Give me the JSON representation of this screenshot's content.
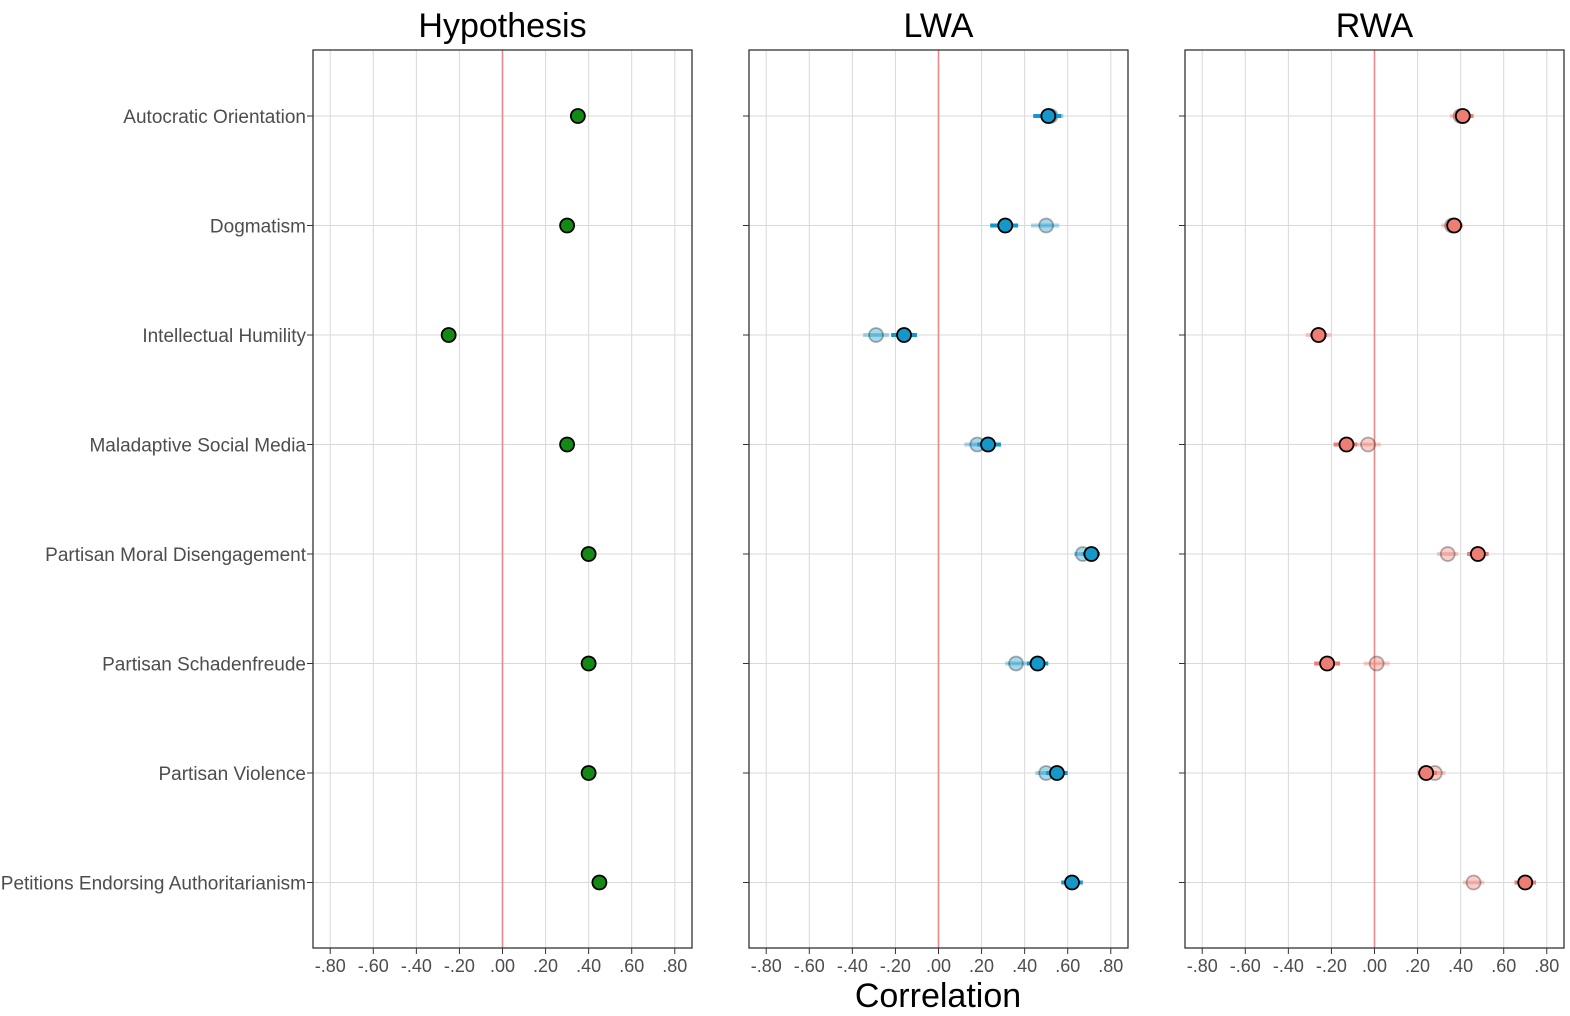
{
  "chart_data": {
    "type": "scatter",
    "xlabel": "Correlation",
    "xlim": [
      -0.88,
      0.88
    ],
    "x_ticks": [
      -0.8,
      -0.6,
      -0.4,
      -0.2,
      0.0,
      0.2,
      0.4,
      0.6,
      0.8
    ],
    "x_tick_labels": [
      "-.80",
      "-.60",
      "-.40",
      "-.20",
      ".00",
      ".20",
      ".40",
      ".60",
      ".80"
    ],
    "reference_line": 0,
    "categories": [
      "Autocratic Orientation",
      "Dogmatism",
      "Intellectual Humility",
      "Maladaptive Social Media",
      "Partisan Moral Disengagement",
      "Partisan Schadenfreude",
      "Partisan Violence",
      "Petitions Endorsing Authoritarianism"
    ],
    "grid": true,
    "colors": {
      "hypothesis": "#138a13",
      "lwa": "#1497c9",
      "rwa": "#ee7e74",
      "reference_line": "#e8898a",
      "grid": "#d9d9d9"
    },
    "panels": [
      {
        "title": "Hypothesis",
        "color": "#138a13",
        "series": [
          {
            "values": [
              0.35,
              0.3,
              -0.25,
              0.3,
              0.4,
              0.4,
              0.4,
              0.45
            ]
          }
        ]
      },
      {
        "title": "LWA",
        "color": "#1497c9",
        "series": [
          {
            "style": "faded",
            "values": [
              0.52,
              0.5,
              -0.29,
              0.18,
              0.67,
              0.36,
              0.5,
              null
            ],
            "ci_low": [
              0.44,
              0.43,
              -0.35,
              0.12,
              0.63,
              0.31,
              0.45,
              null
            ],
            "ci_high": [
              0.58,
              0.56,
              -0.23,
              0.24,
              0.71,
              0.41,
              0.55,
              null
            ]
          },
          {
            "style": "solid",
            "values": [
              0.51,
              0.31,
              -0.16,
              0.23,
              0.71,
              0.46,
              0.55,
              0.62
            ],
            "ci_low": [
              0.44,
              0.24,
              -0.22,
              0.18,
              0.67,
              0.41,
              0.5,
              0.57
            ],
            "ci_high": [
              0.57,
              0.37,
              -0.1,
              0.29,
              0.75,
              0.51,
              0.6,
              0.67
            ]
          }
        ]
      },
      {
        "title": "RWA",
        "color": "#ee7e74",
        "series": [
          {
            "style": "faded",
            "values": [
              0.4,
              0.36,
              -0.26,
              -0.03,
              0.34,
              0.01,
              0.28,
              0.46
            ],
            "ci_low": [
              0.35,
              0.31,
              -0.32,
              -0.09,
              0.29,
              -0.05,
              0.23,
              0.41
            ],
            "ci_high": [
              0.45,
              0.41,
              -0.2,
              0.03,
              0.39,
              0.07,
              0.33,
              0.51
            ]
          },
          {
            "style": "solid",
            "values": [
              0.41,
              0.37,
              -0.26,
              -0.13,
              0.48,
              -0.22,
              0.24,
              0.7
            ],
            "ci_low": [
              0.37,
              0.33,
              -0.3,
              -0.19,
              0.43,
              -0.28,
              0.2,
              0.65
            ],
            "ci_high": [
              0.46,
              0.41,
              -0.22,
              -0.08,
              0.53,
              -0.16,
              0.29,
              0.75
            ]
          }
        ]
      }
    ]
  }
}
